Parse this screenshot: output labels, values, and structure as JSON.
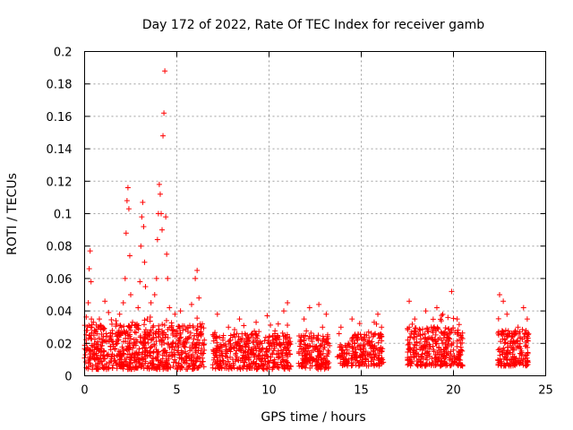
{
  "chart_data": {
    "type": "scatter",
    "title": "Day 172 of 2022, Rate Of TEC Index for receiver gamb",
    "xlabel": "GPS time / hours",
    "ylabel": "ROTI / TECUs",
    "xlim": [
      0,
      25
    ],
    "ylim": [
      0,
      0.2
    ],
    "grid": true,
    "marker": "plus",
    "color": "#ff0000",
    "x_ticks": [
      0,
      5,
      10,
      15,
      20,
      25
    ],
    "x_tick_labels": [
      "0",
      "5",
      "10",
      "15",
      "20",
      "25"
    ],
    "y_ticks": [
      0,
      0.02,
      0.04,
      0.06,
      0.08,
      0.1,
      0.12,
      0.14,
      0.16,
      0.18,
      0.2
    ],
    "y_tick_labels": [
      "0",
      "0.02",
      "0.04",
      "0.06",
      "0.08",
      "0.1",
      "0.12",
      "0.14",
      "0.16",
      "0.18",
      "0.2"
    ],
    "series": [
      {
        "color": "#ff0000",
        "points": [
          [
            0.0,
            0.011
          ],
          [
            0.05,
            0.013
          ],
          [
            0.1,
            0.02
          ],
          [
            0.15,
            0.028
          ],
          [
            0.2,
            0.045
          ],
          [
            0.25,
            0.066
          ],
          [
            0.3,
            0.077
          ],
          [
            0.35,
            0.058
          ],
          [
            0.4,
            0.03
          ],
          [
            0.45,
            0.018
          ],
          [
            0.5,
            0.025
          ],
          [
            0.6,
            0.01
          ],
          [
            0.7,
            0.021
          ],
          [
            0.8,
            0.035
          ],
          [
            0.9,
            0.015
          ],
          [
            1.0,
            0.03
          ],
          [
            1.1,
            0.046
          ],
          [
            1.2,
            0.024
          ],
          [
            1.3,
            0.039
          ],
          [
            1.4,
            0.018
          ],
          [
            1.5,
            0.028
          ],
          [
            1.6,
            0.012
          ],
          [
            1.7,
            0.034
          ],
          [
            1.8,
            0.022
          ],
          [
            1.9,
            0.038
          ],
          [
            2.0,
            0.03
          ],
          [
            2.1,
            0.045
          ],
          [
            2.2,
            0.06
          ],
          [
            2.25,
            0.088
          ],
          [
            2.3,
            0.108
          ],
          [
            2.35,
            0.116
          ],
          [
            2.4,
            0.103
          ],
          [
            2.45,
            0.074
          ],
          [
            2.5,
            0.05
          ],
          [
            2.6,
            0.033
          ],
          [
            2.7,
            0.02
          ],
          [
            2.8,
            0.03
          ],
          [
            2.9,
            0.042
          ],
          [
            3.0,
            0.058
          ],
          [
            3.05,
            0.08
          ],
          [
            3.1,
            0.098
          ],
          [
            3.15,
            0.107
          ],
          [
            3.2,
            0.092
          ],
          [
            3.25,
            0.07
          ],
          [
            3.3,
            0.055
          ],
          [
            3.4,
            0.035
          ],
          [
            3.5,
            0.025
          ],
          [
            3.6,
            0.045
          ],
          [
            3.7,
            0.03
          ],
          [
            3.8,
            0.05
          ],
          [
            3.9,
            0.06
          ],
          [
            3.95,
            0.084
          ],
          [
            4.0,
            0.1
          ],
          [
            4.05,
            0.118
          ],
          [
            4.1,
            0.112
          ],
          [
            4.15,
            0.1
          ],
          [
            4.2,
            0.09
          ],
          [
            4.25,
            0.148
          ],
          [
            4.3,
            0.162
          ],
          [
            4.35,
            0.188
          ],
          [
            4.4,
            0.098
          ],
          [
            4.45,
            0.075
          ],
          [
            4.5,
            0.06
          ],
          [
            4.6,
            0.042
          ],
          [
            4.7,
            0.03
          ],
          [
            4.8,
            0.02
          ],
          [
            4.9,
            0.038
          ],
          [
            5.0,
            0.025
          ],
          [
            5.2,
            0.04
          ],
          [
            5.4,
            0.018
          ],
          [
            5.6,
            0.03
          ],
          [
            5.8,
            0.044
          ],
          [
            6.0,
            0.06
          ],
          [
            6.1,
            0.065
          ],
          [
            6.2,
            0.048
          ],
          [
            6.3,
            0.03
          ],
          [
            6.4,
            0.02
          ],
          [
            7.0,
            0.015
          ],
          [
            7.2,
            0.038
          ],
          [
            7.5,
            0.022
          ],
          [
            7.8,
            0.03
          ],
          [
            8.1,
            0.017
          ],
          [
            8.4,
            0.035
          ],
          [
            8.7,
            0.026
          ],
          [
            9.0,
            0.014
          ],
          [
            9.3,
            0.033
          ],
          [
            9.6,
            0.02
          ],
          [
            9.9,
            0.037
          ],
          [
            10.2,
            0.024
          ],
          [
            10.5,
            0.032
          ],
          [
            10.8,
            0.04
          ],
          [
            11.0,
            0.045
          ],
          [
            11.1,
            0.02
          ],
          [
            11.7,
            0.022
          ],
          [
            11.9,
            0.035
          ],
          [
            12.2,
            0.042
          ],
          [
            12.5,
            0.018
          ],
          [
            12.7,
            0.044
          ],
          [
            12.9,
            0.03
          ],
          [
            13.1,
            0.038
          ],
          [
            13.8,
            0.026
          ],
          [
            13.9,
            0.03
          ],
          [
            14.1,
            0.014
          ],
          [
            14.3,
            0.02
          ],
          [
            14.5,
            0.035
          ],
          [
            14.8,
            0.022
          ],
          [
            15.1,
            0.015
          ],
          [
            15.4,
            0.027
          ],
          [
            15.7,
            0.033
          ],
          [
            15.9,
            0.038
          ],
          [
            16.1,
            0.03
          ],
          [
            17.6,
            0.046
          ],
          [
            17.9,
            0.035
          ],
          [
            18.2,
            0.025
          ],
          [
            18.5,
            0.04
          ],
          [
            18.8,
            0.03
          ],
          [
            19.1,
            0.042
          ],
          [
            19.4,
            0.02
          ],
          [
            19.7,
            0.036
          ],
          [
            19.9,
            0.052
          ],
          [
            20.2,
            0.035
          ],
          [
            20.4,
            0.025
          ],
          [
            22.5,
            0.05
          ],
          [
            22.7,
            0.046
          ],
          [
            22.9,
            0.038
          ],
          [
            23.2,
            0.02
          ],
          [
            23.5,
            0.03
          ],
          [
            23.8,
            0.042
          ],
          [
            24.0,
            0.035
          ]
        ]
      }
    ],
    "clusters": [
      {
        "x": [
          0.0,
          6.5
        ],
        "y_floor": 0.004,
        "y_top": 0.032,
        "count": 700
      },
      {
        "x": [
          6.9,
          11.2
        ],
        "y_floor": 0.004,
        "y_top": 0.026,
        "count": 420
      },
      {
        "x": [
          11.6,
          13.3
        ],
        "y_floor": 0.004,
        "y_top": 0.026,
        "count": 180
      },
      {
        "x": [
          13.7,
          14.35
        ],
        "y_floor": 0.006,
        "y_top": 0.02,
        "count": 50
      },
      {
        "x": [
          14.45,
          16.2
        ],
        "y_floor": 0.006,
        "y_top": 0.026,
        "count": 170
      },
      {
        "x": [
          17.5,
          20.5
        ],
        "y_floor": 0.006,
        "y_top": 0.03,
        "count": 320
      },
      {
        "x": [
          22.4,
          24.1
        ],
        "y_floor": 0.006,
        "y_top": 0.028,
        "count": 180
      }
    ]
  }
}
